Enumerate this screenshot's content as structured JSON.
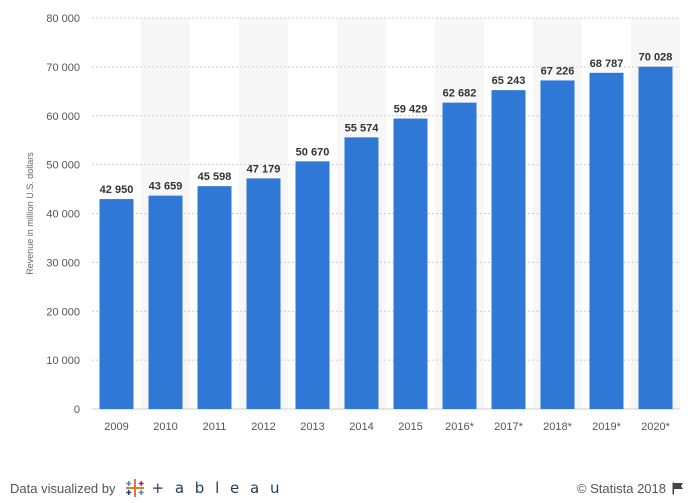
{
  "chart_data": {
    "type": "bar",
    "categories": [
      "2009",
      "2010",
      "2011",
      "2012",
      "2013",
      "2014",
      "2015",
      "2016*",
      "2017*",
      "2018*",
      "2019*",
      "2020*"
    ],
    "values": [
      42950,
      43659,
      45598,
      47179,
      50670,
      55574,
      59429,
      62682,
      65243,
      67226,
      68787,
      70028
    ],
    "value_labels": [
      "42 950",
      "43 659",
      "45 598",
      "47 179",
      "50 670",
      "55 574",
      "59 429",
      "62 682",
      "65 243",
      "67 226",
      "68 787",
      "70 028"
    ],
    "ylabel": "Revenue in million U.S. dollars",
    "ylim": [
      0,
      80000
    ],
    "yticks": [
      0,
      10000,
      20000,
      30000,
      40000,
      50000,
      60000,
      70000,
      80000
    ],
    "ytick_labels": [
      "0",
      "10 000",
      "20 000",
      "30 000",
      "40 000",
      "50 000",
      "60 000",
      "70 000",
      "80 000"
    ],
    "bar_color": "#2f78d6",
    "band_color": "#f7f7f7",
    "grid": true
  },
  "footer": {
    "left_text": "Data visualized by",
    "tableau_text": "+ a b l e a u",
    "right_text": "© Statista 2018"
  },
  "icons": {
    "tableau_logo": "tableau-cross-logo",
    "flag": "flag-icon"
  }
}
